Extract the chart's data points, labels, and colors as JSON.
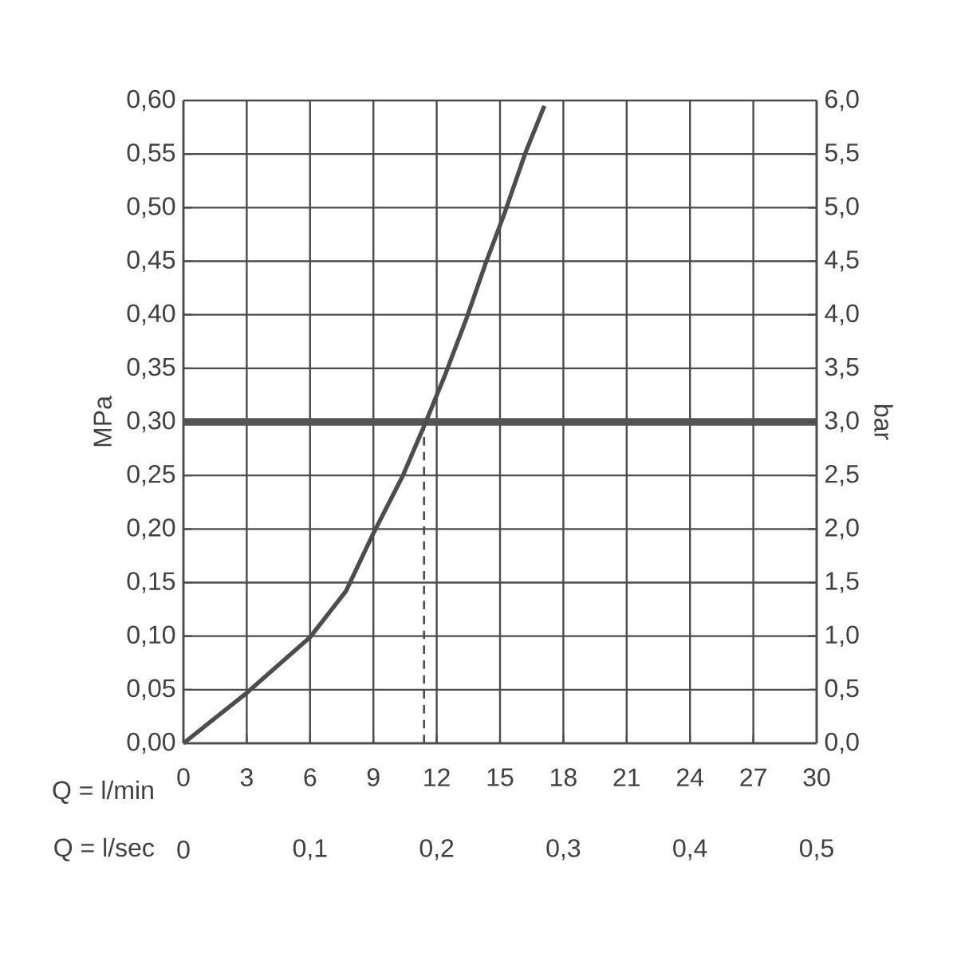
{
  "chart_data": {
    "type": "line",
    "xlabel": "Q = l/min",
    "x2label": "Q = l/sec",
    "ylabel": "MPa",
    "y2label": "bar",
    "xlim": [
      0,
      30
    ],
    "xticks": [
      0,
      3,
      6,
      9,
      12,
      15,
      18,
      21,
      24,
      27,
      30
    ],
    "x2lim": [
      0,
      0.5
    ],
    "x2ticks": [
      {
        "value": 0,
        "label": "0"
      },
      {
        "value": 0.1,
        "label": "0,1"
      },
      {
        "value": 0.2,
        "label": "0,2"
      },
      {
        "value": 0.3,
        "label": "0,3"
      },
      {
        "value": 0.4,
        "label": "0,4"
      },
      {
        "value": 0.5,
        "label": "0,5"
      }
    ],
    "ylim": [
      0,
      0.6
    ],
    "yticks": [
      {
        "value": 0,
        "label": "0,00"
      },
      {
        "value": 0.05,
        "label": "0,05"
      },
      {
        "value": 0.1,
        "label": "0,10"
      },
      {
        "value": 0.15,
        "label": "0,15"
      },
      {
        "value": 0.2,
        "label": "0,20"
      },
      {
        "value": 0.25,
        "label": "0,25"
      },
      {
        "value": 0.3,
        "label": "0,30"
      },
      {
        "value": 0.35,
        "label": "0,35"
      },
      {
        "value": 0.4,
        "label": "0,40"
      },
      {
        "value": 0.45,
        "label": "0,45"
      },
      {
        "value": 0.5,
        "label": "0,50"
      },
      {
        "value": 0.55,
        "label": "0,55"
      },
      {
        "value": 0.6,
        "label": "0,60"
      }
    ],
    "y2lim": [
      0,
      6
    ],
    "y2ticks": [
      {
        "value": 0,
        "label": "0,0"
      },
      {
        "value": 0.5,
        "label": "0,5"
      },
      {
        "value": 1,
        "label": "1,0"
      },
      {
        "value": 1.5,
        "label": "1,5"
      },
      {
        "value": 2,
        "label": "2,0"
      },
      {
        "value": 2.5,
        "label": "2,5"
      },
      {
        "value": 3,
        "label": "3,0"
      },
      {
        "value": 3.5,
        "label": "3,5"
      },
      {
        "value": 4,
        "label": "4,0"
      },
      {
        "value": 4.5,
        "label": "4,5"
      },
      {
        "value": 5,
        "label": "5,0"
      },
      {
        "value": 5.5,
        "label": "5,5"
      },
      {
        "value": 6,
        "label": "6,0"
      }
    ],
    "grid": true,
    "series": [
      {
        "color": "#4d4d4d",
        "x": [
          0,
          3,
          6,
          7.7,
          9,
          10.4,
          11.4,
          12.4,
          13.4,
          14.3,
          15.2,
          16.2,
          17.1
        ],
        "values": [
          0,
          0.047,
          0.099,
          0.142,
          0.196,
          0.25,
          0.296,
          0.344,
          0.396,
          0.447,
          0.494,
          0.551,
          0.595
        ]
      },
      {
        "color": "#4d4d4d",
        "line_style": "dashed",
        "x": [
          11.4,
          11.4
        ],
        "values": [
          0,
          0.3
        ]
      }
    ],
    "ref_lines": [
      {
        "axis": "y",
        "value": 0.3,
        "color": "#555555"
      }
    ]
  }
}
